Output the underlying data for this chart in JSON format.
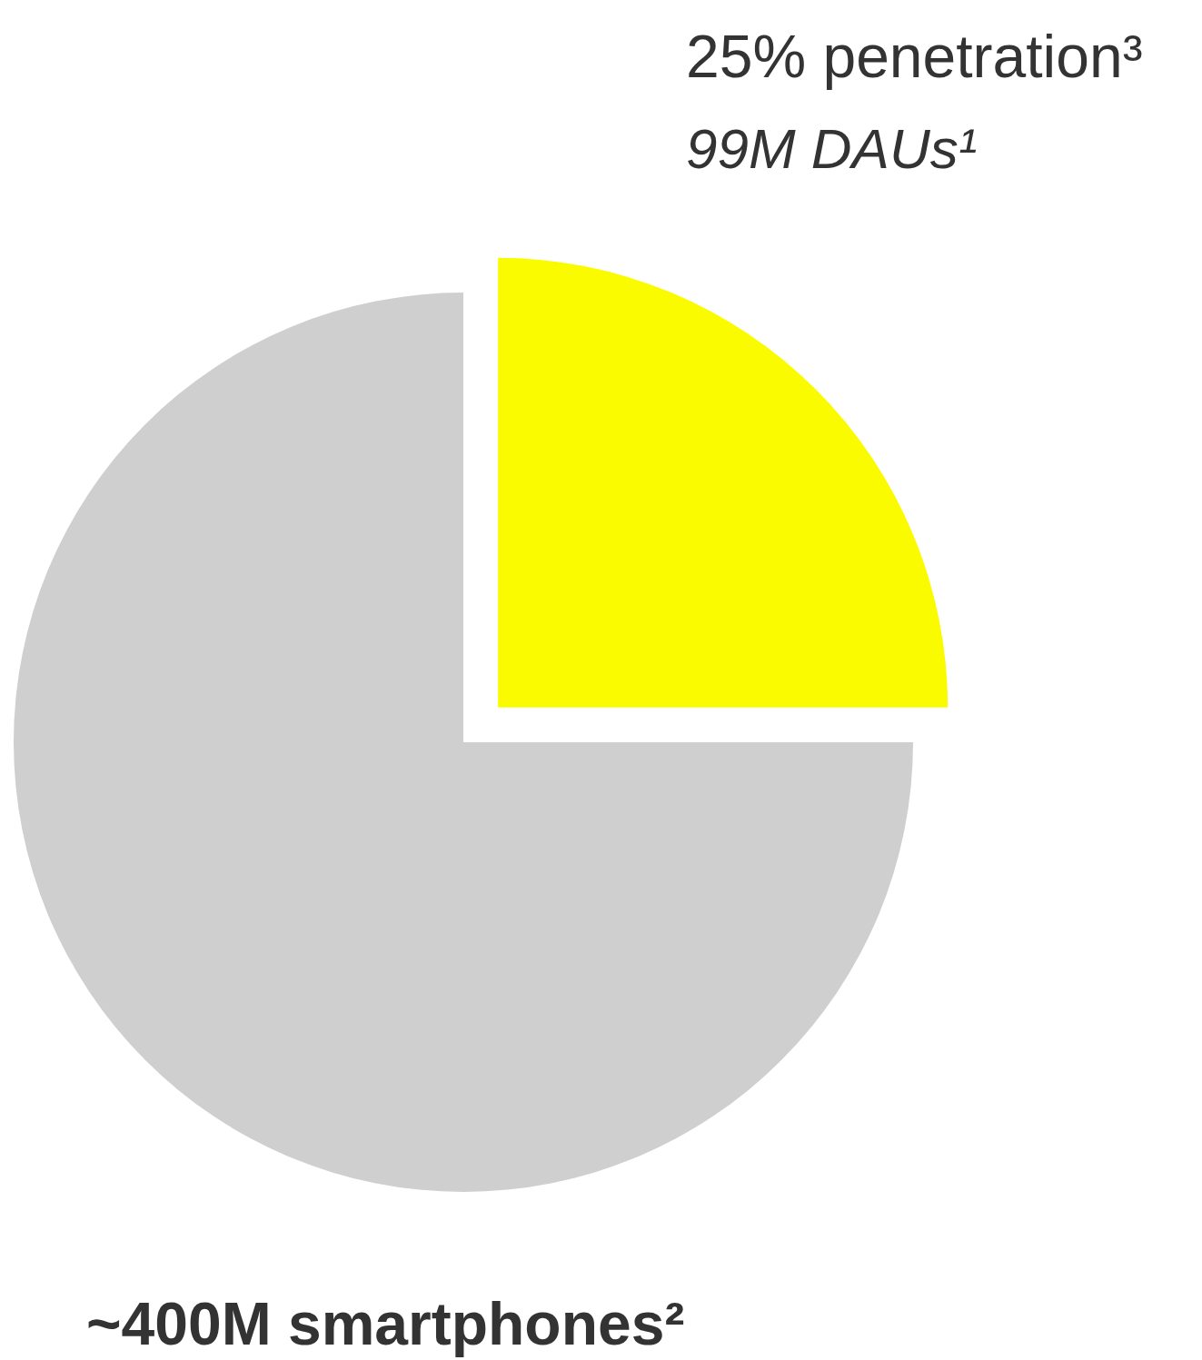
{
  "chart_data": {
    "type": "pie",
    "categories": [
      "25% penetration³",
      "~400M smartphones²"
    ],
    "values": [
      25,
      75
    ],
    "colors": [
      "#fbfb00",
      "#cfcfcf"
    ],
    "annotations": [
      "99M DAUs¹"
    ]
  }
}
